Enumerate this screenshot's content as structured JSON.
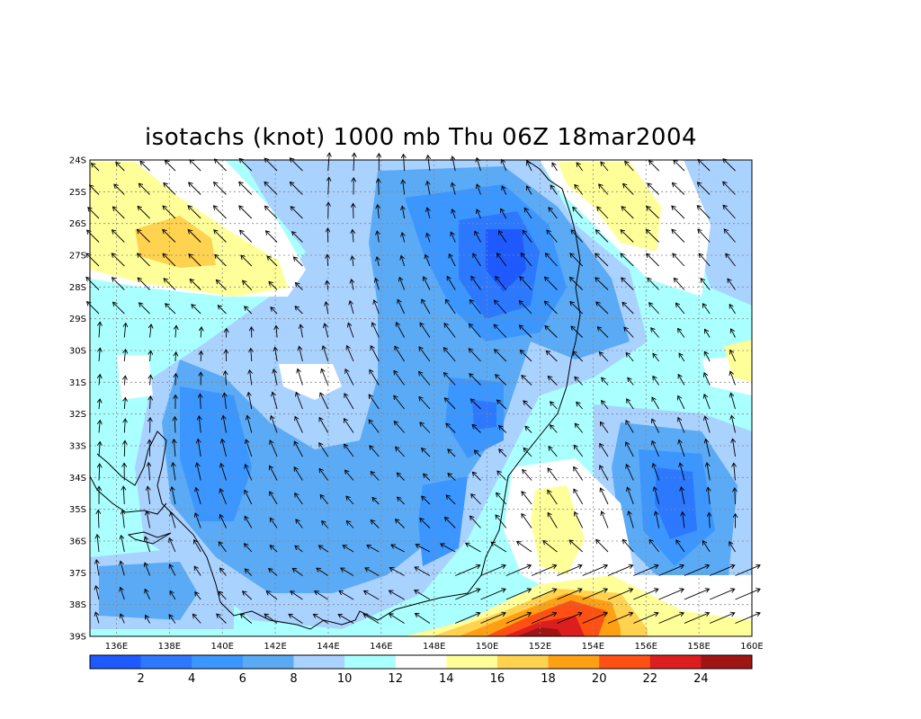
{
  "title": "isotachs (knot) 1000 mb Thu 06Z 18mar2004",
  "map": {
    "lon_range": [
      135,
      160
    ],
    "lat_range": [
      -39,
      -24
    ],
    "lat_labels": [
      "24S",
      "25S",
      "26S",
      "27S",
      "28S",
      "29S",
      "30S",
      "31S",
      "32S",
      "33S",
      "34S",
      "35S",
      "36S",
      "37S",
      "38S",
      "39S"
    ],
    "lon_labels": [
      "136E",
      "138E",
      "140E",
      "142E",
      "144E",
      "146E",
      "148E",
      "150E",
      "152E",
      "154E",
      "156E",
      "158E",
      "160E"
    ],
    "gridlines": true,
    "field": "isotachs (knot)",
    "level": "1000 mb",
    "vectors": "wind arrows"
  },
  "colorbar": {
    "labels": [
      "2",
      "4",
      "6",
      "8",
      "10",
      "12",
      "14",
      "16",
      "18",
      "20",
      "22",
      "24"
    ],
    "colors": [
      "#1e5aff",
      "#2c78ff",
      "#3c96ff",
      "#5aaaf5",
      "#aad2ff",
      "#aaffff",
      "#ffffff",
      "#ffff9a",
      "#ffd250",
      "#ffa014",
      "#ff5014",
      "#dc1e1e",
      "#a01414"
    ]
  },
  "palette": {
    "frame": "#000000",
    "coast": "#000000",
    "grid": "#888888"
  }
}
